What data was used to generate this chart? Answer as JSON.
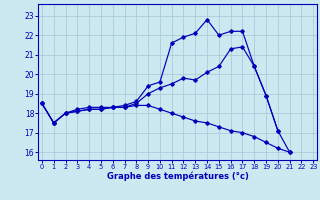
{
  "xlabel": "Graphe des températures (°c)",
  "bg_color": "#cce8f0",
  "grid_color": "#aaccda",
  "line_color": "#0000bb",
  "spine_color": "#0000bb",
  "x_ticks": [
    0,
    1,
    2,
    3,
    4,
    5,
    6,
    7,
    8,
    9,
    10,
    11,
    12,
    13,
    14,
    15,
    16,
    17,
    18,
    19,
    20,
    21,
    22,
    23
  ],
  "y_ticks": [
    16,
    17,
    18,
    19,
    20,
    21,
    22,
    23
  ],
  "xlim": [
    -0.3,
    23.3
  ],
  "ylim": [
    15.6,
    23.6
  ],
  "line1_x": [
    0,
    1,
    2,
    3,
    4,
    5,
    6,
    7,
    8,
    9,
    10,
    11,
    12,
    13,
    14,
    15,
    16,
    17,
    18,
    19,
    20
  ],
  "line1_y": [
    18.5,
    17.5,
    18.0,
    18.2,
    18.3,
    18.3,
    18.3,
    18.4,
    18.6,
    19.4,
    19.6,
    21.6,
    21.9,
    22.1,
    22.8,
    22.0,
    22.2,
    22.2,
    20.4,
    18.9,
    17.1
  ],
  "line2_x": [
    0,
    1,
    2,
    3,
    4,
    5,
    6,
    7,
    8,
    9,
    10,
    11,
    12,
    13,
    14,
    15,
    16,
    17,
    18,
    19,
    20,
    21
  ],
  "line2_y": [
    18.5,
    17.5,
    18.0,
    18.1,
    18.2,
    18.2,
    18.3,
    18.3,
    18.5,
    19.0,
    19.3,
    19.5,
    19.8,
    19.7,
    20.1,
    20.4,
    21.3,
    21.4,
    20.4,
    18.9,
    17.1,
    16.0
  ],
  "line3_x": [
    0,
    1,
    2,
    3,
    4,
    5,
    6,
    7,
    8,
    9,
    10,
    11,
    12,
    13,
    14,
    15,
    16,
    17,
    18,
    19,
    20,
    21
  ],
  "line3_y": [
    18.5,
    17.5,
    18.0,
    18.1,
    18.2,
    18.2,
    18.3,
    18.3,
    18.4,
    18.4,
    18.2,
    18.0,
    17.8,
    17.6,
    17.5,
    17.3,
    17.1,
    17.0,
    16.8,
    16.5,
    16.2,
    16.0
  ]
}
